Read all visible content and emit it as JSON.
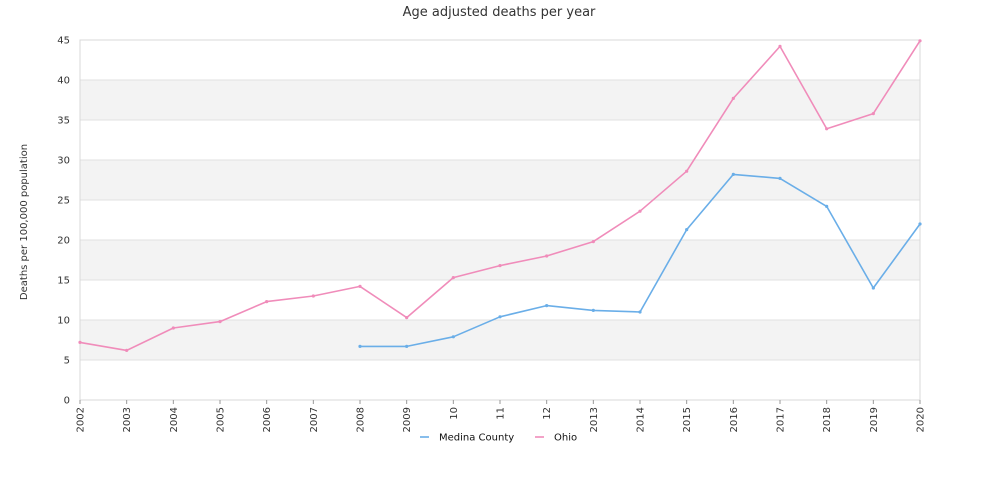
{
  "chart_data": {
    "type": "line",
    "title": "Age adjusted deaths per year",
    "xlabel": "",
    "ylabel": "Deaths per 100,000 population",
    "x": [
      "2002",
      "2003",
      "2004",
      "2005",
      "2006",
      "2007",
      "2008",
      "2009",
      "10",
      "11",
      "12",
      "2013",
      "2014",
      "2015",
      "2016",
      "2017",
      "2018",
      "2019",
      "2020"
    ],
    "ylim": [
      0,
      45
    ],
    "yticks": [
      0,
      5,
      10,
      15,
      20,
      25,
      30,
      35,
      40,
      45
    ],
    "grid": "horizontal alternating bands",
    "legend_position": "bottom-center",
    "series": [
      {
        "name": "Medina County",
        "color": "#6aaee8",
        "values": [
          null,
          null,
          null,
          null,
          null,
          null,
          6.7,
          6.7,
          7.9,
          10.4,
          11.8,
          11.2,
          11.0,
          21.3,
          28.2,
          27.7,
          24.2,
          14.0,
          22.0
        ]
      },
      {
        "name": "Ohio",
        "color": "#f08cba",
        "values": [
          7.2,
          6.2,
          9.0,
          9.8,
          12.3,
          13.0,
          14.2,
          10.3,
          15.3,
          16.8,
          18.0,
          19.8,
          23.6,
          28.6,
          37.7,
          44.2,
          33.9,
          35.8,
          44.9
        ]
      }
    ]
  }
}
